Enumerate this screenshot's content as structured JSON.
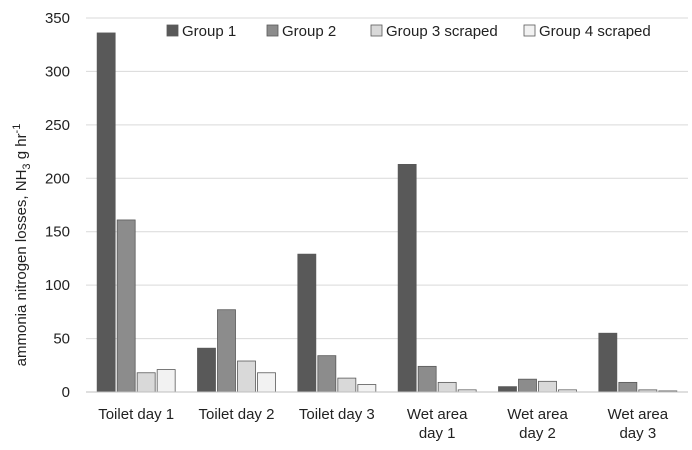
{
  "chart_data": {
    "type": "bar",
    "title": "",
    "xlabel": "",
    "ylabel_prefix": "ammonia nitrogen losses, NH",
    "ylabel_sub": "3",
    "ylabel_suffix": " g hr",
    "ylabel_sup": "-1",
    "ylim": [
      0,
      350
    ],
    "yticks": [
      0,
      50,
      100,
      150,
      200,
      250,
      300,
      350
    ],
    "grid": true,
    "legend_position": "top",
    "categories": [
      {
        "lines": [
          "Toilet day 1"
        ]
      },
      {
        "lines": [
          "Toilet day 2"
        ]
      },
      {
        "lines": [
          "Toilet day 3"
        ]
      },
      {
        "lines": [
          "Wet area",
          "day 1"
        ]
      },
      {
        "lines": [
          "Wet area",
          "day 2"
        ]
      },
      {
        "lines": [
          "Wet area",
          "day 3"
        ]
      }
    ],
    "series": [
      {
        "name": "Group 1",
        "color": "#595959",
        "values": [
          336,
          41,
          129,
          213,
          5,
          55
        ]
      },
      {
        "name": "Group 2",
        "color": "#8c8c8c",
        "values": [
          161,
          77,
          34,
          24,
          12,
          9
        ]
      },
      {
        "name": "Group 3 scraped",
        "color": "#d9d9d9",
        "values": [
          18,
          29,
          13,
          9,
          10,
          2
        ]
      },
      {
        "name": "Group 4 scraped",
        "color": "#f2f2f2",
        "values": [
          21,
          18,
          7,
          2,
          2,
          1
        ]
      }
    ]
  }
}
